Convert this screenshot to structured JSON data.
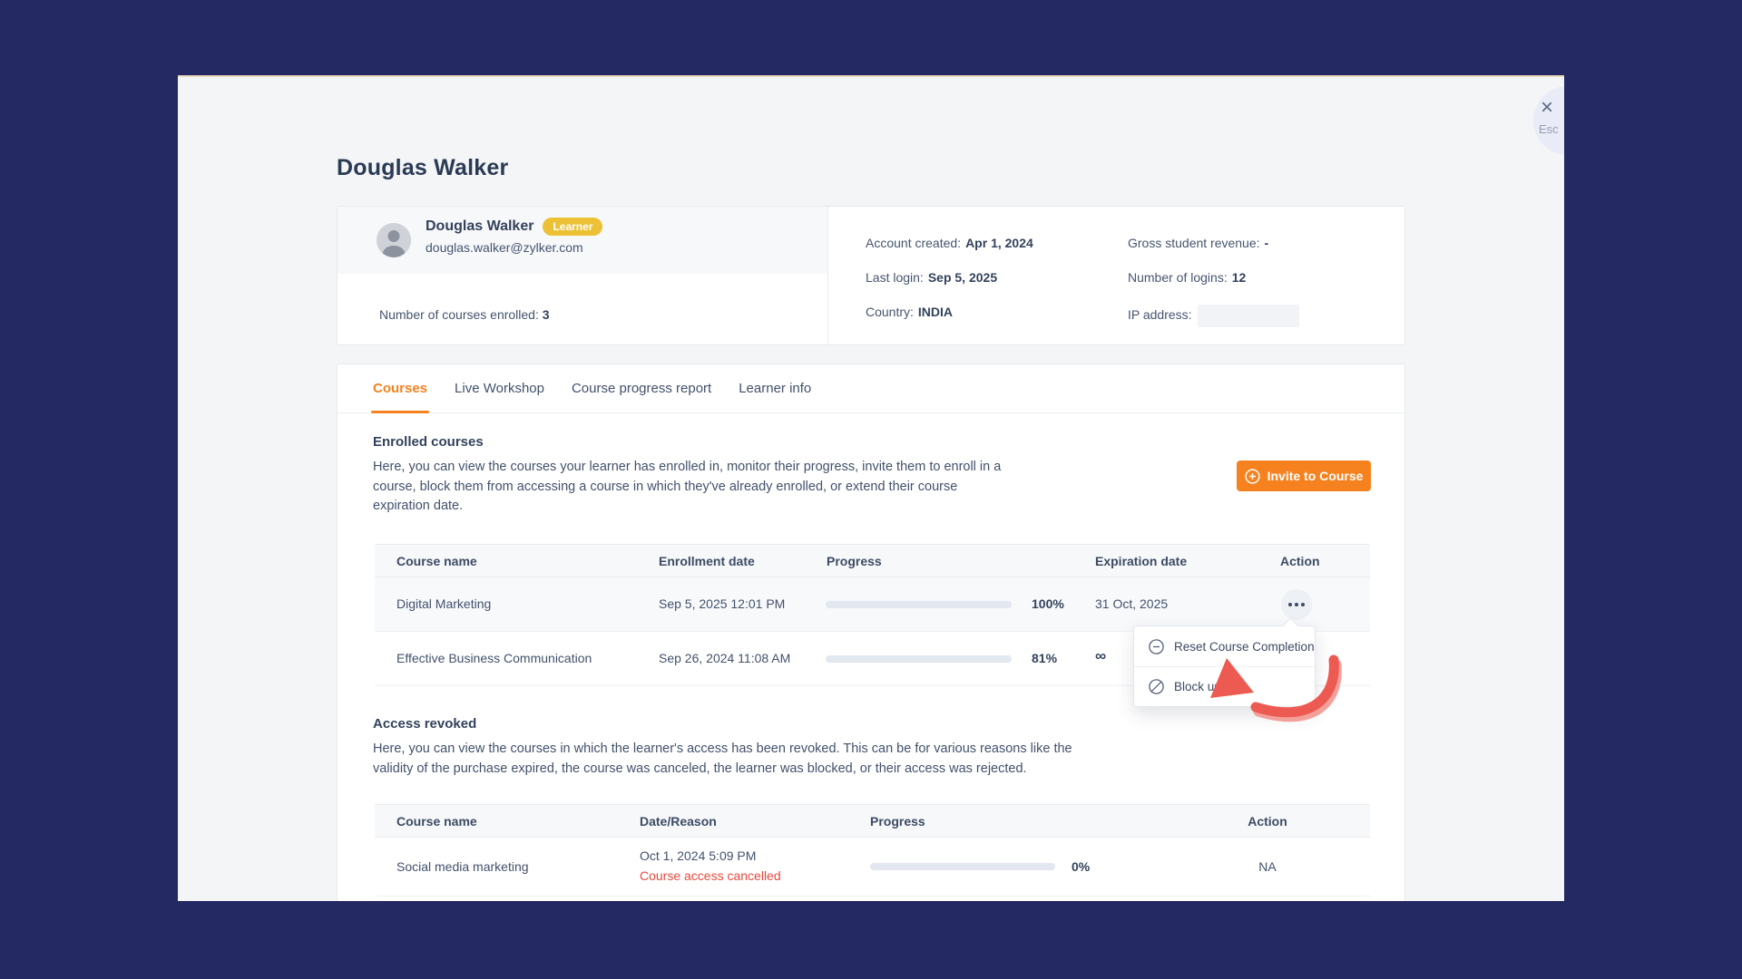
{
  "page": {
    "title": "Douglas Walker"
  },
  "chrome": {
    "close_symbol": "×",
    "close_hint": "Esc"
  },
  "colors": {
    "background_navy": "#242963",
    "accent_orange": "#f6821f",
    "badge_yellow": "#ecc136",
    "progress_green": "#2eb873",
    "error_red": "#e8493d",
    "annotation_red": "#ed5a52"
  },
  "icons": {
    "invite": "circle-plus-icon",
    "reset": "circle-minus-icon",
    "block": "circle-slash-icon",
    "more": "ellipsis-icon",
    "close": "close-icon"
  },
  "profile": {
    "name": "Douglas Walker",
    "role_badge": "Learner",
    "email": "douglas.walker@zylker.com",
    "courses_enrolled_label": "Number of courses enrolled:",
    "courses_enrolled_value": "3",
    "stats": [
      {
        "label": "Account created:",
        "value": "Apr 1, 2024"
      },
      {
        "label": "Gross student revenue:",
        "value": "-"
      },
      {
        "label": "Last login:",
        "value": "Sep 5, 2025"
      },
      {
        "label": "Number of logins:",
        "value": "12"
      },
      {
        "label": "Country:",
        "value": "INDIA"
      },
      {
        "label": "IP address:",
        "value": ""
      }
    ]
  },
  "tabs": [
    {
      "label": "Courses",
      "active": true
    },
    {
      "label": "Live Workshop",
      "active": false
    },
    {
      "label": "Course progress report",
      "active": false
    },
    {
      "label": "Learner info",
      "active": false
    }
  ],
  "enrolled": {
    "heading": "Enrolled courses",
    "description": "Here, you can view the courses your learner has enrolled in, monitor their progress, invite them to enroll in a course, block them from accessing a course in which they've already enrolled, or extend their course expiration date.",
    "invite_button": "Invite to Course",
    "table": {
      "headers": [
        "Course name",
        "Enrollment date",
        "Progress",
        "Expiration date",
        "Action"
      ],
      "rows": [
        {
          "course": "Digital Marketing",
          "enrollment_date": "Sep 5, 2025 12:01 PM",
          "progress_pct": 100,
          "progress_label": "100%",
          "expiration": "31 Oct, 2025"
        },
        {
          "course": "Effective Business Communication",
          "enrollment_date": "Sep 26, 2024 11:08 AM",
          "progress_pct": 81,
          "progress_label": "81%",
          "expiration": "∞"
        }
      ]
    },
    "action_menu": {
      "items": [
        {
          "icon": "circle-minus-icon",
          "label": "Reset Course Completion"
        },
        {
          "icon": "circle-slash-icon",
          "label": "Block user"
        }
      ]
    }
  },
  "revoked": {
    "heading": "Access revoked",
    "description": "Here, you can view the courses in which the learner's access has been revoked. This can be for various reasons like the validity of the purchase expired, the course was canceled, the learner was blocked, or their access was rejected.",
    "table": {
      "headers": [
        "Course name",
        "Date/Reason",
        "Progress",
        "Action"
      ],
      "rows": [
        {
          "course": "Social media marketing",
          "date": "Oct 1, 2024 5:09 PM",
          "reason": "Course access cancelled",
          "progress_pct": 0,
          "progress_label": "0%",
          "action": "NA"
        }
      ]
    }
  }
}
